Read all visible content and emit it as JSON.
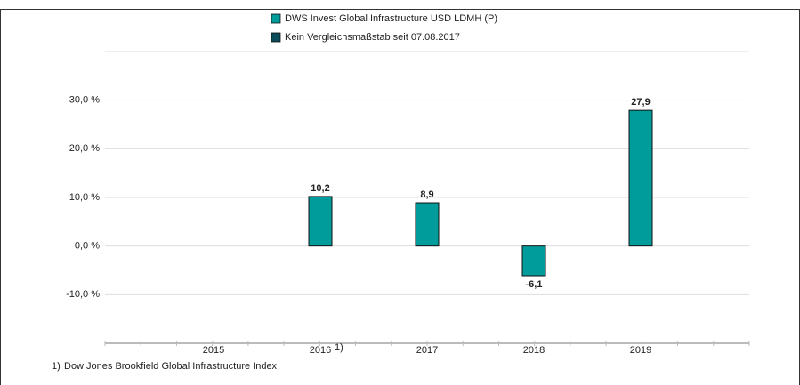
{
  "chart_data": {
    "type": "bar",
    "categories": [
      "2015",
      "2016",
      "2017",
      "2018",
      "2019"
    ],
    "series": [
      {
        "name": "DWS Invest Global Infrastructure  USD LDMH (P)",
        "color": "#009b9b",
        "values": [
          null,
          10.2,
          8.9,
          -6.1,
          27.9
        ],
        "value_labels": [
          null,
          "10,2",
          "8,9",
          "-6,1",
          "27,9"
        ]
      },
      {
        "name": "Kein Vergleichsmaßstab seit 07.08.2017",
        "color": "#0b4d5b",
        "values": [
          null,
          null,
          null,
          null,
          null
        ]
      }
    ],
    "ylim": [
      -20,
      40
    ],
    "yticks": [
      {
        "value": -10,
        "label": "-10,0 %"
      },
      {
        "value": 0,
        "label": "0,0 %"
      },
      {
        "value": 10,
        "label": "10,0 %"
      },
      {
        "value": 20,
        "label": "20,0 %"
      },
      {
        "value": 30,
        "label": "30,0 %"
      }
    ],
    "grid": true,
    "footnote": {
      "marker": "1)",
      "text": "Dow Jones Brookfield Global Infrastructure Index"
    },
    "footnote_category": "2016"
  }
}
